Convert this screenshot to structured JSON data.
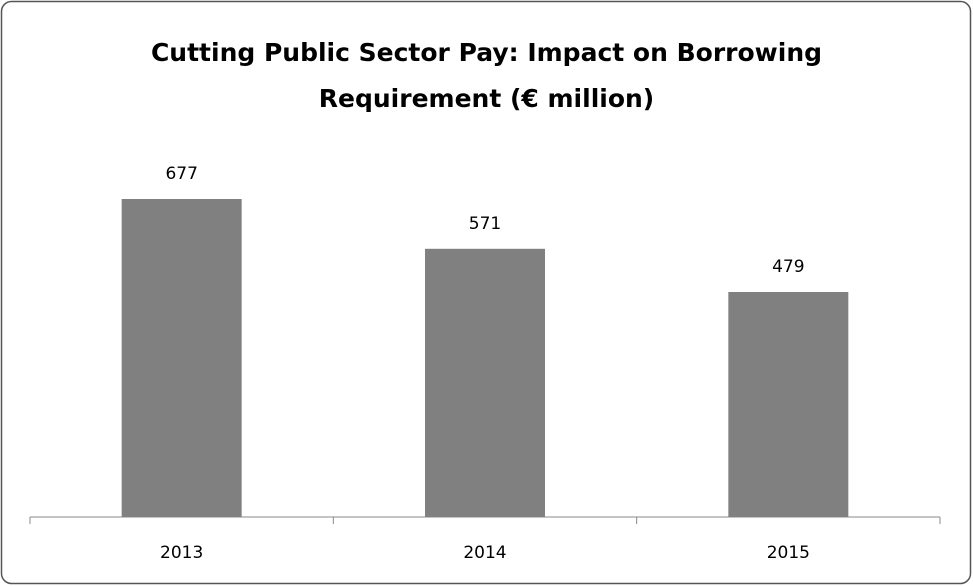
{
  "chart_data": {
    "type": "bar",
    "title": "Cutting Public Sector Pay:  Impact on Borrowing Requirement (€ million)",
    "categories": [
      "2013",
      "2014",
      "2015"
    ],
    "values": [
      677,
      571,
      479
    ],
    "color": "#808080"
  }
}
